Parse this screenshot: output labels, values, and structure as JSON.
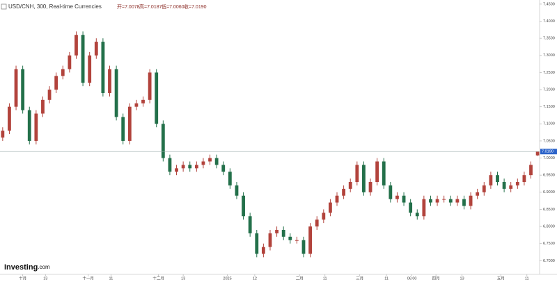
{
  "chart_data": {
    "type": "candlestick",
    "title": "USD/CNH, 300, Real-time Currencies",
    "ohlc_labels": [
      "开=7.0078",
      "高=7.0187",
      "低=7.0060",
      "收=7.0190"
    ],
    "last_price_label": "7.0190",
    "brand": [
      "Investing",
      ".com"
    ],
    "up_color": "#b2433c",
    "down_color": "#23704a",
    "open": [
      7.06,
      7.08,
      7.15,
      7.26,
      7.14,
      7.05,
      7.13,
      7.17,
      7.2,
      7.24,
      7.26,
      7.3,
      7.36,
      7.22,
      7.3,
      7.34,
      7.19,
      7.26,
      7.12,
      7.05,
      7.15,
      7.16,
      7.17,
      7.25,
      7.1,
      7.0,
      6.96,
      6.97,
      6.98,
      6.97,
      6.98,
      6.99,
      7.0,
      6.98,
      6.96,
      6.92,
      6.89,
      6.83,
      6.78,
      6.72,
      6.74,
      6.78,
      6.79,
      6.77,
      6.76,
      6.76,
      6.72,
      6.8,
      6.82,
      6.84,
      6.87,
      6.89,
      6.91,
      6.93,
      6.98,
      6.9,
      6.93,
      6.99,
      6.92,
      6.88,
      6.89,
      6.87,
      6.84,
      6.83,
      6.88,
      6.87,
      6.88,
      6.88,
      6.87,
      6.88,
      6.86,
      6.89,
      6.9,
      6.92,
      6.95,
      6.93,
      6.91,
      6.92,
      6.93,
      6.95,
      7.0078
    ],
    "high": [
      7.09,
      7.16,
      7.27,
      7.27,
      7.15,
      7.14,
      7.18,
      7.21,
      7.25,
      7.27,
      7.31,
      7.37,
      7.37,
      7.31,
      7.35,
      7.35,
      7.27,
      7.27,
      7.13,
      7.16,
      7.17,
      7.18,
      7.26,
      7.26,
      7.11,
      7.01,
      6.98,
      6.99,
      6.99,
      6.99,
      7.0,
      7.01,
      7.01,
      6.99,
      6.97,
      6.93,
      6.9,
      6.84,
      6.79,
      6.75,
      6.79,
      6.8,
      6.8,
      6.78,
      6.77,
      6.77,
      6.81,
      6.83,
      6.85,
      6.88,
      6.9,
      6.92,
      6.94,
      6.99,
      6.99,
      6.94,
      7.0,
      7.0,
      6.93,
      6.9,
      6.9,
      6.88,
      6.85,
      6.89,
      6.89,
      6.89,
      6.89,
      6.89,
      6.89,
      6.89,
      6.9,
      6.91,
      6.93,
      6.96,
      6.96,
      6.94,
      6.93,
      6.94,
      6.96,
      6.99,
      7.0187
    ],
    "low": [
      7.05,
      7.07,
      7.14,
      7.13,
      7.04,
      7.04,
      7.12,
      7.16,
      7.19,
      7.23,
      7.25,
      7.29,
      7.21,
      7.21,
      7.29,
      7.18,
      7.18,
      7.11,
      7.04,
      7.04,
      7.14,
      7.15,
      7.16,
      7.09,
      6.99,
      6.95,
      6.95,
      6.96,
      6.96,
      6.96,
      6.97,
      6.98,
      6.97,
      6.95,
      6.91,
      6.88,
      6.82,
      6.77,
      6.71,
      6.71,
      6.73,
      6.77,
      6.76,
      6.75,
      6.75,
      6.71,
      6.71,
      6.79,
      6.81,
      6.83,
      6.86,
      6.88,
      6.9,
      6.92,
      6.89,
      6.89,
      6.92,
      6.91,
      6.87,
      6.87,
      6.86,
      6.83,
      6.82,
      6.82,
      6.86,
      6.86,
      6.87,
      6.86,
      6.86,
      6.85,
      6.85,
      6.88,
      6.89,
      6.91,
      6.92,
      6.9,
      6.9,
      6.91,
      6.92,
      6.94,
      7.006
    ],
    "close": [
      7.08,
      7.15,
      7.26,
      7.14,
      7.05,
      7.13,
      7.17,
      7.2,
      7.24,
      7.26,
      7.3,
      7.36,
      7.22,
      7.3,
      7.34,
      7.19,
      7.26,
      7.12,
      7.05,
      7.15,
      7.16,
      7.17,
      7.25,
      7.1,
      7.0,
      6.96,
      6.97,
      6.98,
      6.97,
      6.98,
      6.99,
      7.0,
      6.98,
      6.96,
      6.92,
      6.89,
      6.83,
      6.78,
      6.72,
      6.74,
      6.78,
      6.79,
      6.77,
      6.76,
      6.76,
      6.72,
      6.8,
      6.82,
      6.84,
      6.87,
      6.89,
      6.91,
      6.93,
      6.98,
      6.9,
      6.93,
      6.99,
      6.92,
      6.88,
      6.89,
      6.87,
      6.84,
      6.83,
      6.88,
      6.87,
      6.88,
      6.88,
      6.87,
      6.88,
      6.86,
      6.89,
      6.9,
      6.92,
      6.95,
      6.93,
      6.91,
      6.92,
      6.93,
      6.95,
      6.98,
      7.019
    ],
    "xlim": [
      -0.4,
      80.3
    ],
    "xticks": [
      {
        "value": 3,
        "label": "十月"
      },
      {
        "value": 6.4,
        "label": "13"
      },
      {
        "value": 12.8,
        "label": "十一月"
      },
      {
        "value": 16.2,
        "label": "11"
      },
      {
        "value": 23.3,
        "label": "十二月"
      },
      {
        "value": 27,
        "label": "13"
      },
      {
        "value": 33.6,
        "label": "2025"
      },
      {
        "value": 37.7,
        "label": "12"
      },
      {
        "value": 44.4,
        "label": "二月"
      },
      {
        "value": 48.2,
        "label": "11"
      },
      {
        "value": 53.4,
        "label": "三月"
      },
      {
        "value": 57.4,
        "label": "11"
      },
      {
        "value": 61.2,
        "label": "06:00"
      },
      {
        "value": 64.8,
        "label": "四月"
      },
      {
        "value": 68.7,
        "label": "13"
      },
      {
        "value": 74.5,
        "label": "五月"
      },
      {
        "value": 78.4,
        "label": "11"
      }
    ],
    "ylim": [
      6.66,
      7.462
    ],
    "yticks": [
      {
        "value": 7.45,
        "label": "7.4500"
      },
      {
        "value": 7.4,
        "label": "7.4000"
      },
      {
        "value": 7.35,
        "label": "7.3500"
      },
      {
        "value": 7.3,
        "label": "7.3000"
      },
      {
        "value": 7.25,
        "label": "7.2500"
      },
      {
        "value": 7.2,
        "label": "7.2000"
      },
      {
        "value": 7.15,
        "label": "7.1500"
      },
      {
        "value": 7.1,
        "label": "7.1000"
      },
      {
        "value": 7.05,
        "label": "7.0500"
      },
      {
        "value": 7,
        "label": "7.0000"
      },
      {
        "value": 6.95,
        "label": "6.9500"
      },
      {
        "value": 6.9,
        "label": "6.9000"
      },
      {
        "value": 6.85,
        "label": "6.8500"
      },
      {
        "value": 6.8,
        "label": "6.8000"
      },
      {
        "value": 6.75,
        "label": "6.7500"
      },
      {
        "value": 6.7,
        "label": "6.7000"
      }
    ]
  }
}
